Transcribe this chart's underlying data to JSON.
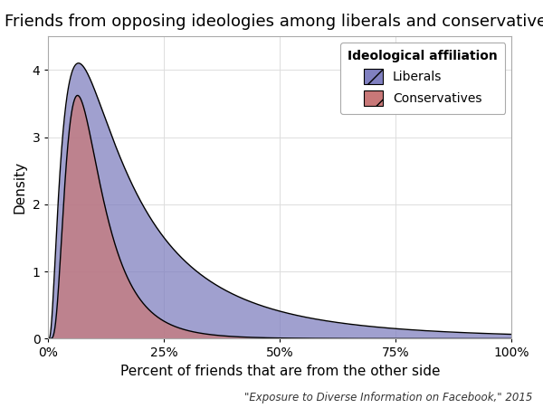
{
  "title": "Friends from opposing ideologies among liberals and conservatives",
  "xlabel": "Percent of friends that are from the other side",
  "ylabel": "Density",
  "citation": "\"Exposure to Diverse Information on Facebook,\" 2015",
  "liberal_color": "#8080c0",
  "conservative_color": "#c87878",
  "liberal_label": "Liberals",
  "conservative_label": "Conservatives",
  "legend_title": "Ideological affiliation",
  "xlim": [
    0,
    1.0
  ],
  "ylim": [
    -0.05,
    4.5
  ],
  "xticks": [
    0,
    0.25,
    0.5,
    0.75,
    1.0
  ],
  "yticks": [
    0,
    1,
    2,
    3,
    4
  ],
  "background_color": "#f0f0f0",
  "plot_bg_color": "#ffffff",
  "title_fontsize": 13,
  "label_fontsize": 11,
  "tick_fontsize": 10,
  "legend_fontsize": 10,
  "lib_sigma": 0.95,
  "lib_mode": 0.065,
  "lib_peak": 4.1,
  "con_sigma": 0.6,
  "con_mode": 0.063,
  "con_peak": 3.62
}
